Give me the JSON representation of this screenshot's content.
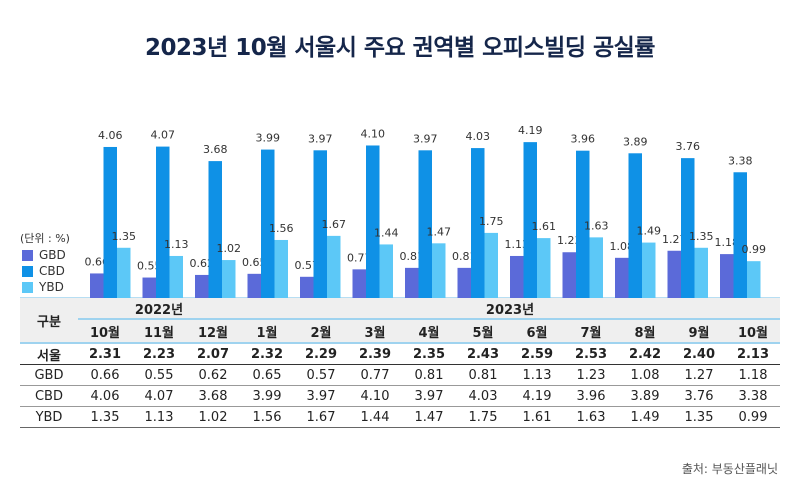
{
  "chart_data": {
    "type": "bar",
    "title": "2023년 10월 서울시 주요 권역별 오피스빌딩 공실률",
    "unit_label": "(단위 : %)",
    "years": [
      {
        "label": "2022년",
        "span": 3
      },
      {
        "label": "2023년",
        "span": 10
      }
    ],
    "categories": [
      "10월",
      "11월",
      "12월",
      "1월",
      "2월",
      "3월",
      "4월",
      "5월",
      "6월",
      "7월",
      "8월",
      "9월",
      "10월"
    ],
    "series": [
      {
        "name": "GBD",
        "color": "#5b6ad9",
        "values": [
          0.66,
          0.55,
          0.62,
          0.65,
          0.57,
          0.77,
          0.81,
          0.81,
          1.13,
          1.23,
          1.08,
          1.27,
          1.18
        ]
      },
      {
        "name": "CBD",
        "color": "#0f91e6",
        "values": [
          4.06,
          4.07,
          3.68,
          3.99,
          3.97,
          4.1,
          3.97,
          4.03,
          4.19,
          3.96,
          3.89,
          3.76,
          3.38
        ]
      },
      {
        "name": "YBD",
        "color": "#5cc8f7",
        "values": [
          1.35,
          1.13,
          1.02,
          1.56,
          1.67,
          1.44,
          1.47,
          1.75,
          1.61,
          1.63,
          1.49,
          1.35,
          0.99
        ]
      }
    ],
    "table": {
      "header": "구분",
      "rows": [
        {
          "label": "서울",
          "values": [
            "2.31",
            "2.23",
            "2.07",
            "2.32",
            "2.29",
            "2.39",
            "2.35",
            "2.43",
            "2.59",
            "2.53",
            "2.42",
            "2.40",
            "2.13"
          ]
        },
        {
          "label": "GBD",
          "values": [
            "0.66",
            "0.55",
            "0.62",
            "0.65",
            "0.57",
            "0.77",
            "0.81",
            "0.81",
            "1.13",
            "1.23",
            "1.08",
            "1.27",
            "1.18"
          ]
        },
        {
          "label": "CBD",
          "values": [
            "4.06",
            "4.07",
            "3.68",
            "3.99",
            "3.97",
            "4.10",
            "3.97",
            "4.03",
            "4.19",
            "3.96",
            "3.89",
            "3.76",
            "3.38"
          ]
        },
        {
          "label": "YBD",
          "values": [
            "1.35",
            "1.13",
            "1.02",
            "1.56",
            "1.67",
            "1.44",
            "1.47",
            "1.75",
            "1.61",
            "1.63",
            "1.49",
            "1.35",
            "0.99"
          ]
        }
      ]
    },
    "source": "출처: 부동산플래닛"
  }
}
